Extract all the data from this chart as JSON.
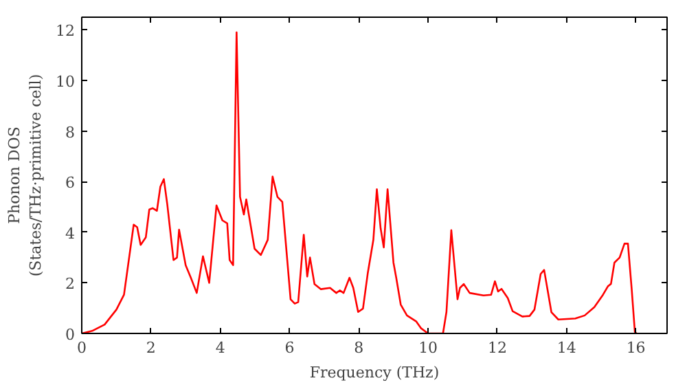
{
  "chart_data": {
    "type": "line",
    "xlabel": "Frequency (THz)",
    "ylabel": "Phonon DOS\n(States/THz·primitive cell)",
    "xlim": [
      0,
      16.9
    ],
    "ylim": [
      0,
      12.5
    ],
    "xticks": [
      0,
      2,
      4,
      6,
      8,
      10,
      12,
      14,
      16
    ],
    "yticks": [
      0,
      2,
      4,
      6,
      8,
      10,
      12
    ],
    "grid": false,
    "marker": "none",
    "line_style": "solid",
    "series": [
      {
        "color": "#ff0000",
        "x": [
          0,
          0.3,
          0.66,
          1.0,
          1.22,
          1.5,
          1.6,
          1.7,
          1.85,
          1.95,
          2.05,
          2.17,
          2.27,
          2.37,
          2.47,
          2.65,
          2.75,
          2.81,
          3.0,
          3.15,
          3.32,
          3.5,
          3.68,
          3.89,
          4.06,
          4.2,
          4.27,
          4.37,
          4.47,
          4.57,
          4.68,
          4.75,
          4.99,
          5.17,
          5.37,
          5.51,
          5.65,
          5.79,
          6.03,
          6.15,
          6.25,
          6.41,
          6.51,
          6.59,
          6.72,
          6.9,
          7.17,
          7.35,
          7.45,
          7.56,
          7.73,
          7.84,
          7.98,
          8.12,
          8.26,
          8.42,
          8.52,
          8.63,
          8.72,
          8.83,
          9.0,
          9.08,
          9.21,
          9.39,
          9.66,
          9.8,
          10.0,
          10.43,
          10.53,
          10.67,
          10.85,
          10.92,
          11.03,
          11.2,
          11.6,
          11.82,
          11.93,
          12.02,
          12.12,
          12.3,
          12.44,
          12.72,
          12.93,
          13.07,
          13.17,
          13.25,
          13.35,
          13.45,
          13.56,
          13.76,
          14.25,
          14.52,
          14.8,
          15.05,
          15.19,
          15.28,
          15.38,
          15.53,
          15.67,
          15.77,
          15.88,
          15.97,
          16.02
        ],
        "values": [
          0,
          0.1,
          0.35,
          0.94,
          1.53,
          4.3,
          4.2,
          3.5,
          3.8,
          4.9,
          4.95,
          4.85,
          5.8,
          6.1,
          5.1,
          2.9,
          3.0,
          4.1,
          2.7,
          2.2,
          1.6,
          3.05,
          2.0,
          5.06,
          4.47,
          4.35,
          2.9,
          2.7,
          11.9,
          5.4,
          4.7,
          5.3,
          3.35,
          3.1,
          3.7,
          6.2,
          5.4,
          5.2,
          1.35,
          1.18,
          1.24,
          3.9,
          2.25,
          3.0,
          1.95,
          1.75,
          1.8,
          1.6,
          1.7,
          1.6,
          2.2,
          1.8,
          0.85,
          0.98,
          2.4,
          3.7,
          5.7,
          4.15,
          3.4,
          5.7,
          2.8,
          2.2,
          1.14,
          0.71,
          0.47,
          0.2,
          0,
          0,
          0.85,
          4.08,
          1.35,
          1.8,
          1.95,
          1.6,
          1.5,
          1.53,
          2.06,
          1.66,
          1.76,
          1.4,
          0.88,
          0.67,
          0.69,
          0.94,
          1.72,
          2.35,
          2.51,
          1.72,
          0.84,
          0.55,
          0.59,
          0.71,
          1.04,
          1.53,
          1.86,
          1.96,
          2.8,
          3.0,
          3.55,
          3.55,
          1.72,
          0.06,
          0
        ]
      }
    ]
  }
}
